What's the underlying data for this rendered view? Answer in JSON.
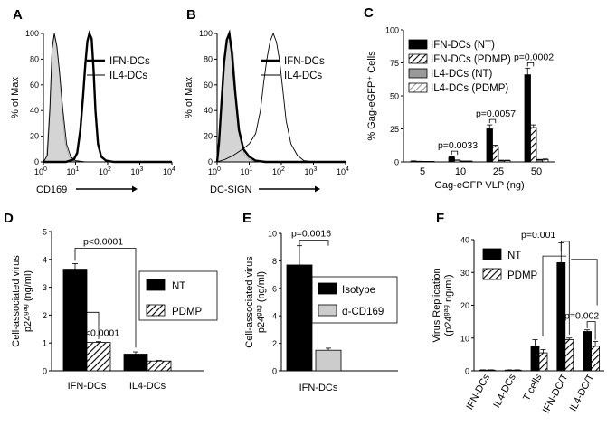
{
  "colors": {
    "black": "#000000",
    "gray": "#999999",
    "light_gray": "#cccccc",
    "white": "#ffffff",
    "shade": "#d4d4d4"
  },
  "chart_data": [
    {
      "id": "A",
      "type": "histogram",
      "panel_label": "A",
      "ylabel": "% of Max",
      "xlabel": "CD169",
      "y_ticks": [
        "0",
        "20",
        "40",
        "60",
        "80",
        "100"
      ],
      "x_ticks": [
        "10",
        "10",
        "10",
        "10",
        "10"
      ],
      "x_tick_exponents": [
        "0",
        "1",
        "2",
        "3",
        "4"
      ],
      "ylim": [
        0,
        100
      ],
      "xlim_log": [
        0,
        4
      ],
      "legend": [
        "IFN-DCs",
        "IL4-DCs"
      ],
      "grid": false,
      "series": [
        {
          "name": "",
          "role": "isotype",
          "style": "filled-gray",
          "points": [
            [
              0,
              0
            ],
            [
              0.1,
              4
            ],
            [
              0.2,
              45
            ],
            [
              0.27,
              90
            ],
            [
              0.33,
              99
            ],
            [
              0.4,
              92
            ],
            [
              0.48,
              75
            ],
            [
              0.57,
              45
            ],
            [
              0.68,
              15
            ],
            [
              0.8,
              4
            ],
            [
              0.95,
              1
            ],
            [
              1.2,
              0
            ],
            [
              4,
              0
            ]
          ]
        },
        {
          "name": "IL4-DCs",
          "role": "thin",
          "points": [
            [
              0,
              0
            ],
            [
              0.12,
              5
            ],
            [
              0.2,
              40
            ],
            [
              0.27,
              88
            ],
            [
              0.34,
              100
            ],
            [
              0.42,
              90
            ],
            [
              0.5,
              70
            ],
            [
              0.6,
              42
            ],
            [
              0.72,
              14
            ],
            [
              0.85,
              4
            ],
            [
              1.0,
              1
            ],
            [
              1.3,
              0
            ],
            [
              4,
              0
            ]
          ]
        },
        {
          "name": "IFN-DCs",
          "role": "thick",
          "points": [
            [
              0,
              0
            ],
            [
              0.7,
              0
            ],
            [
              0.95,
              2
            ],
            [
              1.05,
              7
            ],
            [
              1.15,
              25
            ],
            [
              1.23,
              50
            ],
            [
              1.3,
              75
            ],
            [
              1.37,
              94
            ],
            [
              1.43,
              100
            ],
            [
              1.5,
              96
            ],
            [
              1.56,
              72
            ],
            [
              1.62,
              40
            ],
            [
              1.7,
              14
            ],
            [
              1.8,
              4
            ],
            [
              1.95,
              1
            ],
            [
              2.2,
              0
            ],
            [
              4,
              0
            ]
          ]
        }
      ]
    },
    {
      "id": "B",
      "type": "histogram",
      "panel_label": "B",
      "ylabel": "% of Max",
      "xlabel": "DC-SIGN",
      "y_ticks": [
        "0",
        "20",
        "40",
        "60",
        "80",
        "100"
      ],
      "x_ticks": [
        "10",
        "10",
        "10",
        "10",
        "10"
      ],
      "x_tick_exponents": [
        "0",
        "1",
        "2",
        "3",
        "4"
      ],
      "ylim": [
        0,
        100
      ],
      "xlim_log": [
        0,
        4
      ],
      "legend": [
        "IFN-DCs",
        "IL4-DCs"
      ],
      "grid": false,
      "series": [
        {
          "name": "",
          "role": "isotype",
          "style": "filled-gray",
          "points": [
            [
              0,
              0
            ],
            [
              0.08,
              20
            ],
            [
              0.16,
              55
            ],
            [
              0.24,
              82
            ],
            [
              0.32,
              97
            ],
            [
              0.4,
              99
            ],
            [
              0.5,
              85
            ],
            [
              0.6,
              50
            ],
            [
              0.72,
              20
            ],
            [
              0.85,
              6
            ],
            [
              1.0,
              2
            ],
            [
              1.2,
              0
            ],
            [
              4,
              0
            ]
          ]
        },
        {
          "name": "IFN-DCs",
          "role": "thick",
          "points": [
            [
              0,
              0
            ],
            [
              0.06,
              15
            ],
            [
              0.14,
              48
            ],
            [
              0.22,
              78
            ],
            [
              0.3,
              95
            ],
            [
              0.38,
              100
            ],
            [
              0.46,
              85
            ],
            [
              0.56,
              55
            ],
            [
              0.68,
              25
            ],
            [
              0.82,
              10
            ],
            [
              1.0,
              4
            ],
            [
              1.2,
              1
            ],
            [
              1.5,
              0
            ],
            [
              4,
              0
            ]
          ]
        },
        {
          "name": "IL4-DCs",
          "role": "thin",
          "points": [
            [
              0,
              0
            ],
            [
              0.25,
              2
            ],
            [
              0.5,
              5
            ],
            [
              0.8,
              10
            ],
            [
              1.0,
              14
            ],
            [
              1.2,
              22
            ],
            [
              1.35,
              40
            ],
            [
              1.45,
              62
            ],
            [
              1.55,
              80
            ],
            [
              1.65,
              94
            ],
            [
              1.75,
              100
            ],
            [
              1.85,
              93
            ],
            [
              1.95,
              78
            ],
            [
              2.05,
              55
            ],
            [
              2.15,
              32
            ],
            [
              2.3,
              14
            ],
            [
              2.5,
              5
            ],
            [
              2.7,
              1
            ],
            [
              3.0,
              0
            ],
            [
              4,
              0
            ]
          ]
        }
      ]
    },
    {
      "id": "C",
      "type": "bar",
      "panel_label": "C",
      "ylabel": "% Gag-eGFP⁺ Cells",
      "xlabel": "Gag-eGFP VLP (ng)",
      "categories": [
        "5",
        "10",
        "25",
        "50"
      ],
      "ylim": [
        0,
        100
      ],
      "y_ticks": [
        "0",
        "25",
        "50",
        "75",
        "100"
      ],
      "grid": false,
      "legend_position": "top-left inside",
      "series": [
        {
          "name": "IFN-DCs (NT)",
          "style": "black",
          "values": [
            0.5,
            3.5,
            25,
            66
          ],
          "errors": [
            0.3,
            0.5,
            3,
            5
          ]
        },
        {
          "name": "IFN-DCs (PDMP)",
          "style": "hatch",
          "values": [
            0.3,
            1.2,
            11.5,
            26
          ],
          "errors": [
            0.2,
            0.3,
            1.2,
            2
          ]
        },
        {
          "name": "IL4-DCs (NT)",
          "style": "gray",
          "values": [
            0.2,
            0.5,
            1.0,
            1.5
          ],
          "errors": [
            0.1,
            0.2,
            0.3,
            0.4
          ]
        },
        {
          "name": "IL4-DCs (PDMP)",
          "style": "light-hatch",
          "values": [
            0.2,
            0.5,
            1.0,
            1.8
          ],
          "errors": [
            0.1,
            0.2,
            0.3,
            0.4
          ]
        }
      ],
      "annotations": [
        {
          "text": "p=0.0033",
          "category": 1
        },
        {
          "text": "p=0.0057",
          "category": 2
        },
        {
          "text": "p=0.0002",
          "category": 3
        }
      ]
    },
    {
      "id": "D",
      "type": "bar",
      "panel_label": "D",
      "ylabel_line1": "Cell-associated virus",
      "ylabel_line2": "p24",
      "ylabel_sup": "gag",
      "ylabel_unit": " (ng/ml)",
      "categories": [
        "IFN-DCs",
        "IL4-DCs"
      ],
      "ylim": [
        0,
        5
      ],
      "y_ticks": [
        "0",
        "1",
        "2",
        "3",
        "4",
        "5"
      ],
      "grid": false,
      "legend_position": "right",
      "series": [
        {
          "name": "NT",
          "style": "black",
          "values": [
            3.65,
            0.6
          ],
          "errors": [
            0.2,
            0.08
          ]
        },
        {
          "name": "PDMP",
          "style": "hatch",
          "values": [
            1.02,
            0.35
          ],
          "errors": [
            0.03,
            0.02
          ]
        }
      ],
      "annotations": [
        {
          "text": "p<0.0001"
        },
        {
          "text": "p<0.0001"
        }
      ]
    },
    {
      "id": "E",
      "type": "bar",
      "panel_label": "E",
      "ylabel_line1": "Cell-associated virus",
      "ylabel_line2": "p24",
      "ylabel_sup": "gag",
      "ylabel_unit": " (ng/ml)",
      "categories": [
        "IFN-DCs"
      ],
      "ylim": [
        0,
        10
      ],
      "y_ticks": [
        "0",
        "2",
        "4",
        "6",
        "8",
        "10"
      ],
      "grid": false,
      "legend_position": "right",
      "series": [
        {
          "name": "Isotype",
          "style": "black",
          "values": [
            7.7
          ],
          "errors": [
            1.4
          ]
        },
        {
          "name": "α-CD169",
          "style": "light-gray",
          "values": [
            1.5
          ],
          "errors": [
            0.15
          ]
        }
      ],
      "annotations": [
        {
          "text": "p=0.0016"
        }
      ]
    },
    {
      "id": "F",
      "type": "bar",
      "panel_label": "F",
      "ylabel_line1": "Virus Replication",
      "ylabel_line2": "(p24",
      "ylabel_sup": "gag",
      "ylabel_unit": " ng/ml)",
      "categories": [
        "IFN-DCs",
        "IL4-DCs",
        "T cells",
        "IFN-DC/T",
        "IL4-DC/T"
      ],
      "ylim": [
        0,
        40
      ],
      "y_ticks": [
        "0",
        "10",
        "20",
        "30",
        "40"
      ],
      "grid": false,
      "legend_position": "top-left inside",
      "series": [
        {
          "name": "NT",
          "style": "black",
          "values": [
            0.2,
            0.2,
            7.5,
            33,
            12
          ],
          "errors": [
            0.1,
            0.1,
            2,
            6,
            0.5
          ]
        },
        {
          "name": "PDMP",
          "style": "hatch",
          "values": [
            0.2,
            0.2,
            5.5,
            9.5,
            7.5
          ],
          "errors": [
            0.1,
            0.1,
            1,
            0.5,
            1.5
          ]
        }
      ],
      "annotations": [
        {
          "text": "p=0.001"
        },
        {
          "text": "p=0.002"
        }
      ]
    }
  ]
}
